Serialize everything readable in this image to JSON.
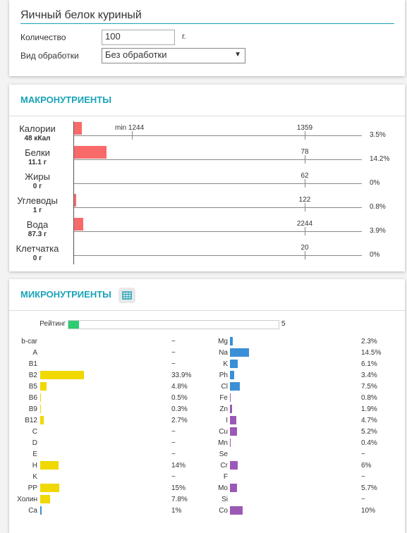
{
  "header": {
    "title": "Яичный белок куриный",
    "quantity_label": "Количество",
    "quantity": "100",
    "unit": "г.",
    "processing_label": "Вид обработки",
    "processing": "Без обработки"
  },
  "macro": {
    "title": "МАКРОНУТРИЕНТЫ",
    "min_label": "min 1244",
    "rows": [
      {
        "name": "Калории",
        "amount": "48 кКал",
        "value": 3.5,
        "value_label": "3.5%",
        "norm": 1359
      },
      {
        "name": "Белки",
        "amount": "11.1 г",
        "value": 14.2,
        "value_label": "14.2%",
        "norm": 78
      },
      {
        "name": "Жиры",
        "amount": "0 г",
        "value": 0,
        "value_label": "0%",
        "norm": 62
      },
      {
        "name": "Углеводы",
        "amount": "1 г",
        "value": 0.8,
        "value_label": "0.8%",
        "norm": 122
      },
      {
        "name": "Вода",
        "amount": "87.3 г",
        "value": 3.9,
        "value_label": "3.9%",
        "norm": 2244
      },
      {
        "name": "Клетчатка",
        "amount": "0 г",
        "value": 0,
        "value_label": "0%",
        "norm": 20
      }
    ]
  },
  "micro": {
    "title": "МИКРОНУТРИЕНТЫ",
    "rating_label": "Рейтинг",
    "rating": 5,
    "vitamins": [
      {
        "name": "b-car",
        "value": null,
        "value_label": "~",
        "color": "#f0d800"
      },
      {
        "name": "A",
        "value": null,
        "value_label": "~",
        "color": "#f0d800"
      },
      {
        "name": "B1",
        "value": null,
        "value_label": "~",
        "color": "#f0d800"
      },
      {
        "name": "B2",
        "value": 33.9,
        "value_label": "33.9%",
        "color": "#f0d800"
      },
      {
        "name": "B5",
        "value": 4.8,
        "value_label": "4.8%",
        "color": "#f0d800"
      },
      {
        "name": "B6",
        "value": 0.5,
        "value_label": "0.5%",
        "color": "#f0d800"
      },
      {
        "name": "B9",
        "value": 0.3,
        "value_label": "0.3%",
        "color": "#f0d800"
      },
      {
        "name": "B12",
        "value": 2.7,
        "value_label": "2.7%",
        "color": "#f0d800"
      },
      {
        "name": "C",
        "value": null,
        "value_label": "~",
        "color": "#f0d800"
      },
      {
        "name": "D",
        "value": null,
        "value_label": "~",
        "color": "#f0d800"
      },
      {
        "name": "E",
        "value": null,
        "value_label": "~",
        "color": "#f0d800"
      },
      {
        "name": "H",
        "value": 14,
        "value_label": "14%",
        "color": "#f0d800"
      },
      {
        "name": "K",
        "value": null,
        "value_label": "~",
        "color": "#f0d800"
      },
      {
        "name": "PP",
        "value": 15,
        "value_label": "15%",
        "color": "#f0d800"
      },
      {
        "name": "Холин",
        "value": 7.8,
        "value_label": "7.8%",
        "color": "#f0d800"
      },
      {
        "name": "Ca",
        "value": 1,
        "value_label": "1%",
        "color": "#3a8fd6"
      }
    ],
    "minerals": [
      {
        "name": "Mg",
        "value": 2.3,
        "value_label": "2.3%",
        "color": "#3a8fd6"
      },
      {
        "name": "Na",
        "value": 14.5,
        "value_label": "14.5%",
        "color": "#3a8fd6"
      },
      {
        "name": "K",
        "value": 6.1,
        "value_label": "6.1%",
        "color": "#3a8fd6"
      },
      {
        "name": "Ph",
        "value": 3.4,
        "value_label": "3.4%",
        "color": "#3a8fd6"
      },
      {
        "name": "Cl",
        "value": 7.5,
        "value_label": "7.5%",
        "color": "#3a8fd6"
      },
      {
        "name": "Fe",
        "value": 0.8,
        "value_label": "0.8%",
        "color": "#9b59b6"
      },
      {
        "name": "Zn",
        "value": 1.9,
        "value_label": "1.9%",
        "color": "#9b59b6"
      },
      {
        "name": "I",
        "value": 4.7,
        "value_label": "4.7%",
        "color": "#9b59b6"
      },
      {
        "name": "Cu",
        "value": 5.2,
        "value_label": "5.2%",
        "color": "#9b59b6"
      },
      {
        "name": "Mn",
        "value": 0.4,
        "value_label": "0.4%",
        "color": "#9b59b6"
      },
      {
        "name": "Se",
        "value": null,
        "value_label": "~",
        "color": "#9b59b6"
      },
      {
        "name": "Cr",
        "value": 6,
        "value_label": "6%",
        "color": "#9b59b6"
      },
      {
        "name": "F",
        "value": null,
        "value_label": "~",
        "color": "#9b59b6"
      },
      {
        "name": "Mo",
        "value": 5.7,
        "value_label": "5.7%",
        "color": "#9b59b6"
      },
      {
        "name": "Si",
        "value": null,
        "value_label": "~",
        "color": "#9b59b6"
      },
      {
        "name": "Co",
        "value": 10,
        "value_label": "10%",
        "color": "#9b59b6"
      }
    ]
  }
}
